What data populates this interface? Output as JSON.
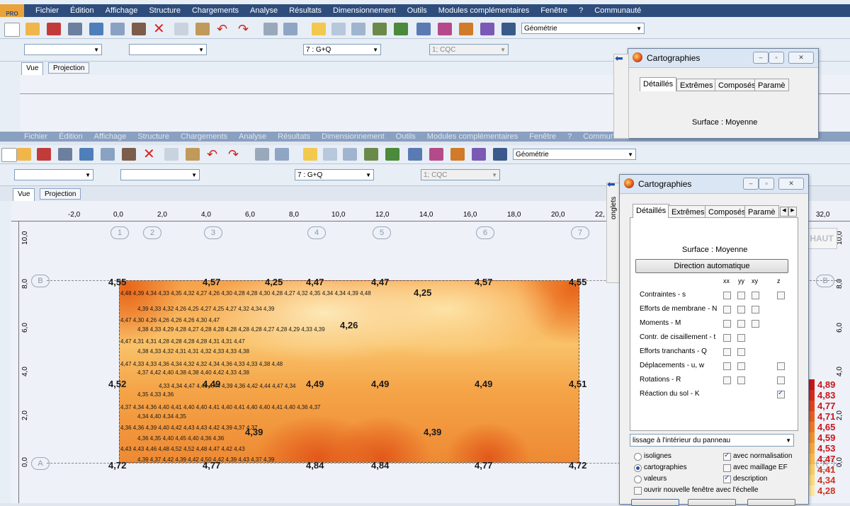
{
  "menu": [
    "Fichier",
    "Édition",
    "Affichage",
    "Structure",
    "Chargements",
    "Analyse",
    "Résultats",
    "Dimensionnement",
    "Outils",
    "Modules complémentaires",
    "Fenêtre",
    "?",
    "Communauté"
  ],
  "app_logo": "PRO",
  "toolbar": {
    "geometry_combo": "Géométrie",
    "load_case_combo": "7 : G+Q",
    "combo_disabled": "1; CQC"
  },
  "view_tabs": [
    "Vue",
    "Projection"
  ],
  "ruler": {
    "x_labels": [
      "-2,0",
      "0,0",
      "2,0",
      "4,0",
      "6,0",
      "8,0",
      "10,0",
      "12,0",
      "14,0",
      "16,0",
      "18,0",
      "20,0",
      "22,"
    ],
    "y_labels_left": [
      "10,0",
      "8,0",
      "6,0",
      "4,0",
      "2,0",
      "0,0"
    ],
    "y_labels_right": [
      "10,0",
      "8,0",
      "6,0",
      "4,0",
      "2,0",
      "0,0"
    ],
    "x_right_label": "32,0"
  },
  "axes": {
    "columns": [
      "1",
      "2",
      "3",
      "4",
      "5",
      "6",
      "7"
    ],
    "rows": [
      "B",
      "A"
    ]
  },
  "haut_label": "HAUT",
  "heatmap": {
    "corner_values": {
      "top": [
        "4,55",
        "4,57",
        "4,25",
        "4,47",
        "4,47",
        "4,57",
        "4,55"
      ],
      "mid": [
        "4,52",
        "4,49",
        "4,49",
        "4,49",
        "4,49",
        "4,51"
      ],
      "bottom": [
        "4,72",
        "4,77",
        "4,84",
        "4,84",
        "4,77",
        "4,72"
      ],
      "inner_big": [
        "4,25",
        "4,26",
        "4,39",
        "4,39"
      ]
    },
    "rows": [
      "4,48  4,39  4,34  4,33   4,35  4,32   4,27   4,26  4,30  4,28   4,28   4,30  4,28   4,27   4,32  4,35   4,34  4,34  4,39  4,48",
      "4,39  4,33  4,32   4,26  4,25   4,27   4,25  4,27   4,32  4,34  4,39",
      "4,47  4,30   4,26  4,26   4,26  4,26   4,30   4,47",
      "4,38  4,33   4,29  4,28  4,27   4,28  4,28   4,28  4,28  4,28   4,27  4,28  4,29   4,33  4,39",
      "4,47  4,31  4,31   4,28  4,28   4,28  4,28   4,31  4,31   4,47",
      "4,38   4,33  4,32  4,31   4,31  4,32  4,33   4,33  4,38",
      "4,47  4,33  4,33  4,36   4,34  4,32   4,32  4,34   4,36  4,33   4,33  4,38  4,48",
      "4,37   4,42  4,40   4,38   4,38   4,40  4,42   4,33  4,38",
      "4,33  4,34   4,47  4,46   4,44   4,39   4,36   4,42   4,44  4,47   4,34",
      "4,35   4,33  4,36",
      "4,37  4,34  4,36  4,40  4,41  4,40   4,40  4,41   4,40  4,41  4,40   4,40  4,41  4,40  4,36   4,37",
      "4,34   4,40   4,34  4,35",
      "4,36   4,36  4,39  4,40   4,42  4,43   4,43  4,42   4,39  4,37   4,37",
      "4,36  4,35   4,40   4,45   4,40   4,36  4,36",
      "4,43   4,43  4,46   4,48  4,52   4,52  4,48   4,47  4,42   4,43",
      "4,39  4,37   4,42  4,39  4,42   4,50   4,42  4,39  4,43   4,37  4,39"
    ]
  },
  "scale_values": [
    "4,89",
    "4,83",
    "4,77",
    "4,71",
    "4,65",
    "4,59",
    "4,53",
    "4,47",
    "4,41",
    "4,34",
    "4,28"
  ],
  "scale_colors": [
    "#c8161b",
    "#d62a1a",
    "#e0441c",
    "#e85f20",
    "#ef7a26",
    "#f3922e",
    "#f6a83a",
    "#f8bb4c",
    "#fbcc62",
    "#fcdb7e",
    "#fde89c"
  ],
  "dialog": {
    "title": "Cartographies",
    "side_label": "onglets",
    "tabs": [
      "Détaillés",
      "Extrêmes",
      "Composés",
      "Paramè"
    ],
    "surface_label": "Surface : Moyenne",
    "auto_direction_button": "Direction automatique",
    "col_headers": [
      "xx",
      "yy",
      "xy",
      "z"
    ],
    "rows": [
      {
        "label": "Contraintes - s",
        "cbs": [
          false,
          false,
          false,
          false
        ]
      },
      {
        "label": "Efforts de membrane - N",
        "cbs": [
          false,
          false,
          false
        ]
      },
      {
        "label": "Moments - M",
        "cbs": [
          false,
          false,
          false
        ]
      },
      {
        "label": "Contr. de cisaillement - t",
        "cbs": [
          false,
          false
        ]
      },
      {
        "label": "Efforts tranchants - Q",
        "cbs": [
          false,
          false
        ]
      },
      {
        "label": "Déplacements - u, w",
        "cbs": [
          false,
          false,
          false
        ]
      },
      {
        "label": "Rotations - R",
        "cbs": [
          false,
          false,
          false
        ]
      },
      {
        "label": "Réaction du sol - K",
        "cbs": [
          true
        ]
      }
    ],
    "smoothing_select": "lissage à l'intérieur du panneau",
    "radios": [
      {
        "label": "isolignes",
        "on": false
      },
      {
        "label": "cartographies",
        "on": true
      },
      {
        "label": "valeurs",
        "on": false
      }
    ],
    "options": [
      {
        "label": "avec normalisation",
        "on": true
      },
      {
        "label": "avec maillage EF",
        "on": false
      },
      {
        "label": "description",
        "on": true
      }
    ],
    "new_window_label": "ouvrir nouvelle fenêtre avec l'échelle"
  }
}
